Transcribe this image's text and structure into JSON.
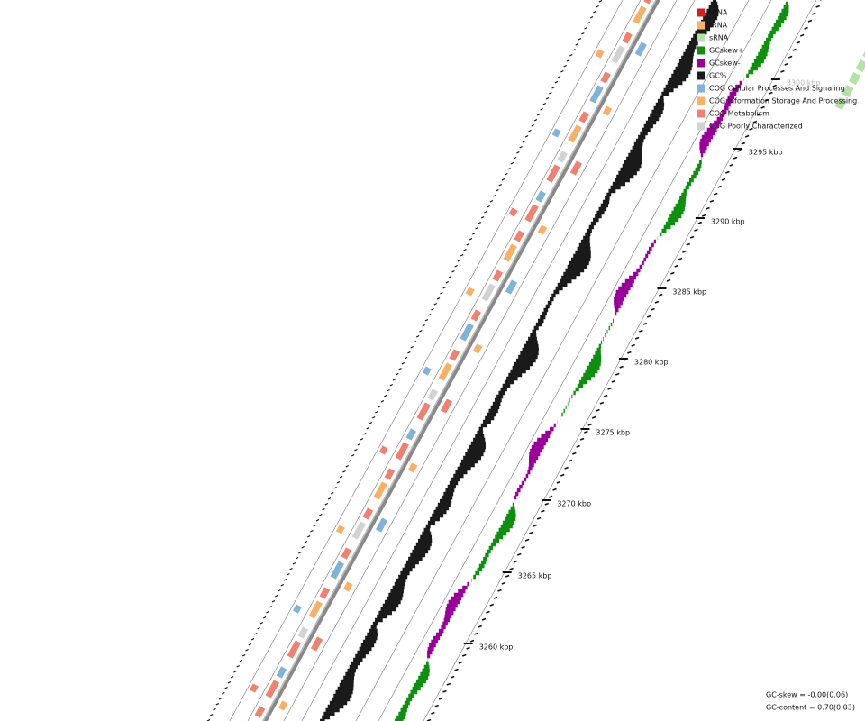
{
  "legend": [
    {
      "label": "rRNA",
      "color": "#cc2222"
    },
    {
      "label": "tRNA",
      "color": "#f7b56b"
    },
    {
      "label": "sRNA",
      "color": "#b5e0a8"
    },
    {
      "label": "GCskew+",
      "color": "#0f8f0f"
    },
    {
      "label": "GCskew-",
      "color": "#990099"
    },
    {
      "label": "GC%",
      "color": "#1a1a1a"
    },
    {
      "label": "COG Cellular Processes And Signaling",
      "color": "#80b3d9"
    },
    {
      "label": "COG Information Storage And Processing",
      "color": "#f8b066"
    },
    {
      "label": "COG Metabolism",
      "color": "#f28070"
    },
    {
      "label": "COG Poorly Characterized",
      "color": "#d2d2d2"
    }
  ],
  "ticks": [
    "3260 kbp",
    "3265 kbp",
    "3270 kbp",
    "3275 kbp",
    "3280 kbp",
    "3285 kbp",
    "3290 kbp",
    "3295 kbp",
    "3300 kbp"
  ],
  "footer": {
    "gc_skew": "GC-skew = -0.00(0.06)",
    "gc_content": "GC-content = 0.70(0.03)"
  }
}
